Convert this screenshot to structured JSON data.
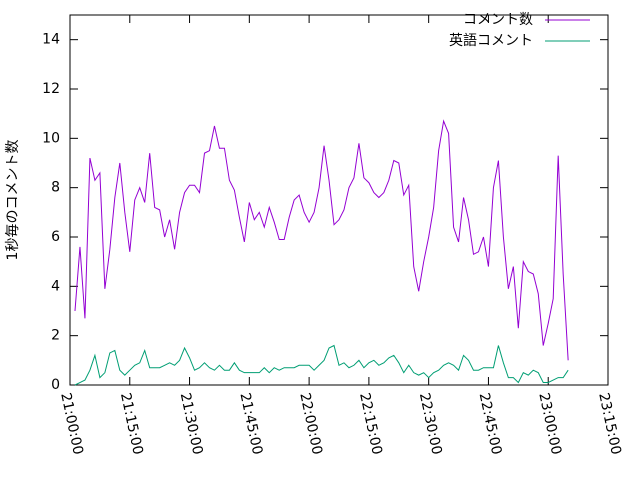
{
  "chart_data": {
    "type": "line",
    "y_label": "1秒毎のコメント数",
    "x": [
      "21:01:15",
      "21:02:30",
      "21:03:45",
      "21:05:00",
      "21:06:15",
      "21:07:30",
      "21:08:45",
      "21:10:00",
      "21:11:15",
      "21:12:30",
      "21:13:45",
      "21:15:00",
      "21:16:15",
      "21:17:30",
      "21:18:45",
      "21:20:00",
      "21:21:15",
      "21:22:30",
      "21:23:45",
      "21:25:00",
      "21:26:15",
      "21:27:30",
      "21:28:45",
      "21:30:00",
      "21:31:15",
      "21:32:30",
      "21:33:45",
      "21:35:00",
      "21:36:15",
      "21:37:30",
      "21:38:45",
      "21:40:00",
      "21:41:15",
      "21:42:30",
      "21:43:45",
      "21:45:00",
      "21:46:15",
      "21:47:30",
      "21:48:45",
      "21:50:00",
      "21:51:15",
      "21:52:30",
      "21:53:45",
      "21:55:00",
      "21:56:15",
      "21:57:30",
      "21:58:45",
      "22:00:00",
      "22:01:15",
      "22:02:30",
      "22:03:45",
      "22:05:00",
      "22:06:15",
      "22:07:30",
      "22:08:45",
      "22:10:00",
      "22:11:15",
      "22:12:30",
      "22:13:45",
      "22:15:00",
      "22:16:15",
      "22:17:30",
      "22:18:45",
      "22:20:00",
      "22:21:15",
      "22:22:30",
      "22:23:45",
      "22:25:00",
      "22:26:15",
      "22:27:30",
      "22:28:45",
      "22:30:00",
      "22:31:15",
      "22:32:30",
      "22:33:45",
      "22:35:00",
      "22:36:15",
      "22:37:30",
      "22:38:45",
      "22:40:00",
      "22:41:15",
      "22:42:30",
      "22:43:45",
      "22:45:00",
      "22:46:15",
      "22:47:30",
      "22:48:45",
      "22:50:00",
      "22:51:15",
      "22:52:30",
      "22:53:45",
      "22:55:00",
      "22:56:15",
      "22:57:30",
      "22:58:45",
      "23:00:00",
      "23:01:15",
      "23:02:30",
      "23:03:45",
      "23:05:00"
    ],
    "series": [
      {
        "name": "コメント数",
        "color": "#9400d3",
        "values": [
          3.0,
          5.6,
          2.7,
          9.2,
          8.3,
          8.6,
          3.9,
          5.5,
          7.6,
          9.0,
          7.0,
          5.4,
          7.5,
          8.0,
          7.4,
          9.4,
          7.2,
          7.1,
          6.0,
          6.7,
          5.5,
          7.0,
          7.8,
          8.1,
          8.1,
          7.8,
          9.4,
          9.5,
          10.5,
          9.6,
          9.6,
          8.3,
          7.9,
          6.8,
          5.8,
          7.4,
          6.7,
          7.0,
          6.4,
          7.2,
          6.6,
          5.9,
          5.9,
          6.8,
          7.5,
          7.7,
          7.0,
          6.6,
          7.0,
          8.0,
          9.7,
          8.3,
          6.5,
          6.7,
          7.1,
          8.0,
          8.4,
          9.8,
          8.4,
          8.2,
          7.8,
          7.6,
          7.8,
          8.3,
          9.1,
          9.0,
          7.7,
          8.1,
          4.8,
          3.8,
          5.0,
          6.0,
          7.2,
          9.5,
          10.7,
          10.2,
          6.4,
          5.8,
          7.6,
          6.7,
          5.3,
          5.4,
          6.0,
          4.8,
          8.0,
          9.1,
          6.0,
          3.9,
          4.8,
          2.3,
          5.0,
          4.6,
          4.5,
          3.7,
          1.6,
          2.5,
          3.5,
          9.3,
          4.5,
          1.0
        ]
      },
      {
        "name": "英語コメント",
        "color": "#009e73",
        "values": [
          0,
          0.1,
          0.2,
          0.6,
          1.2,
          0.3,
          0.5,
          1.3,
          1.4,
          0.6,
          0.4,
          0.6,
          0.8,
          0.9,
          1.4,
          0.7,
          0.7,
          0.7,
          0.8,
          0.9,
          0.8,
          1.0,
          1.5,
          1.1,
          0.6,
          0.7,
          0.9,
          0.7,
          0.6,
          0.8,
          0.6,
          0.6,
          0.9,
          0.6,
          0.5,
          0.5,
          0.5,
          0.5,
          0.7,
          0.5,
          0.7,
          0.6,
          0.7,
          0.7,
          0.7,
          0.8,
          0.8,
          0.8,
          0.6,
          0.8,
          1.0,
          1.5,
          1.6,
          0.8,
          0.9,
          0.7,
          0.8,
          1.0,
          0.7,
          0.9,
          1.0,
          0.8,
          0.9,
          1.1,
          1.2,
          0.9,
          0.5,
          0.8,
          0.5,
          0.4,
          0.5,
          0.3,
          0.5,
          0.6,
          0.8,
          0.9,
          0.8,
          0.6,
          1.2,
          1.0,
          0.6,
          0.6,
          0.7,
          0.7,
          0.7,
          1.6,
          0.9,
          0.3,
          0.3,
          0.1,
          0.5,
          0.4,
          0.6,
          0.5,
          0.1,
          0.1,
          0.2,
          0.3,
          0.3,
          0.6
        ]
      }
    ],
    "xlim": [
      "21:00:00",
      "23:15:00"
    ],
    "xticks": [
      "21:00:00",
      "21:15:00",
      "21:30:00",
      "21:45:00",
      "22:00:00",
      "22:15:00",
      "22:30:00",
      "22:45:00",
      "23:00:00",
      "23:15:00"
    ],
    "ylim": [
      0,
      15
    ],
    "yticks": [
      0,
      2,
      4,
      6,
      8,
      10,
      12,
      14
    ],
    "legend": "top-right"
  }
}
